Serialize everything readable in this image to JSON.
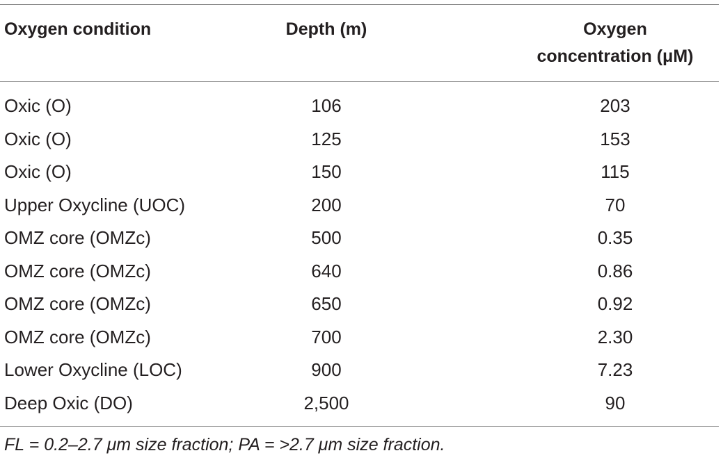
{
  "table": {
    "headers": {
      "condition": "Oxygen condition",
      "depth": "Depth (m)",
      "oxygen_line1": "Oxygen",
      "oxygen_line2": "concentration (μM)"
    },
    "rows": [
      {
        "condition": "Oxic (O)",
        "depth": "106",
        "oxygen": "203"
      },
      {
        "condition": "Oxic (O)",
        "depth": "125",
        "oxygen": "153"
      },
      {
        "condition": "Oxic (O)",
        "depth": "150",
        "oxygen": "115"
      },
      {
        "condition": "Upper Oxycline (UOC)",
        "depth": "200",
        "oxygen": "70"
      },
      {
        "condition": "OMZ core (OMZc)",
        "depth": "500",
        "oxygen": "0.35"
      },
      {
        "condition": "OMZ core (OMZc)",
        "depth": "640",
        "oxygen": "0.86"
      },
      {
        "condition": "OMZ core (OMZc)",
        "depth": "650",
        "oxygen": "0.92"
      },
      {
        "condition": "OMZ core (OMZc)",
        "depth": "700",
        "oxygen": "2.30"
      },
      {
        "condition": "Lower Oxycline (LOC)",
        "depth": "900",
        "oxygen": "7.23"
      },
      {
        "condition": "Deep Oxic (DO)",
        "depth": "2,500",
        "oxygen": "90"
      }
    ],
    "footnote": "FL = 0.2–2.7 μm size fraction; PA = >2.7 μm size fraction."
  }
}
